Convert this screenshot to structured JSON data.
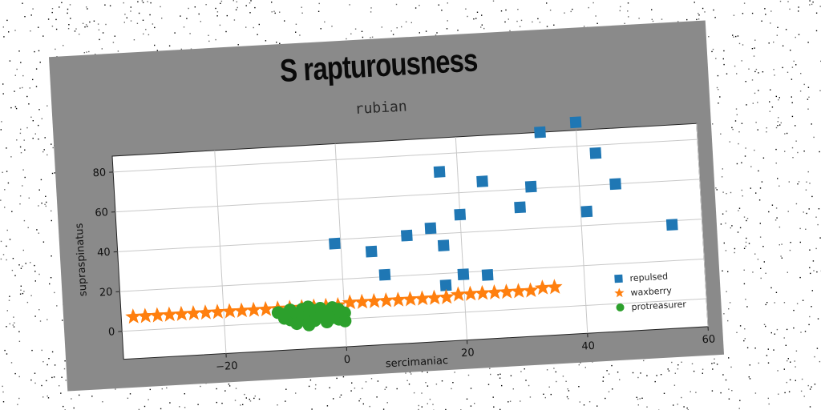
{
  "figure": {
    "title": "S rapturousness"
  },
  "chart_data": {
    "type": "scatter",
    "title": "rubian",
    "xlabel": "sercimaniac",
    "ylabel": "supraspinatus",
    "xlim": [
      -37,
      60
    ],
    "ylim": [
      -14,
      88
    ],
    "xticks": [
      -20,
      0,
      20,
      40,
      60
    ],
    "yticks": [
      0,
      20,
      40,
      60,
      80
    ],
    "grid": true,
    "legend_position": "lower-right",
    "series": [
      {
        "name": "repulsed",
        "marker": "square",
        "color": "#1f77b4",
        "points": [
          [
            -1,
            38
          ],
          [
            5,
            33
          ],
          [
            7,
            21
          ],
          [
            11,
            40
          ],
          [
            15,
            43
          ],
          [
            17,
            71
          ],
          [
            17,
            34
          ],
          [
            17,
            14
          ],
          [
            20,
            49
          ],
          [
            20,
            19
          ],
          [
            24,
            65
          ],
          [
            24,
            18
          ],
          [
            30,
            51
          ],
          [
            32,
            61
          ],
          [
            34,
            88
          ],
          [
            40,
            92
          ],
          [
            41,
            47
          ],
          [
            43,
            76
          ],
          [
            46,
            60
          ],
          [
            55,
            38
          ]
        ]
      },
      {
        "name": "waxberry",
        "marker": "star",
        "color": "#ff7f0e",
        "points": [
          [
            -35,
            7
          ],
          [
            -33,
            7
          ],
          [
            -31,
            7
          ],
          [
            -29,
            7
          ],
          [
            -27,
            7
          ],
          [
            -25,
            7
          ],
          [
            -23,
            7
          ],
          [
            -21,
            7
          ],
          [
            -19,
            7
          ],
          [
            -17,
            7
          ],
          [
            -15,
            7
          ],
          [
            -13,
            7
          ],
          [
            -11,
            7
          ],
          [
            -9,
            7
          ],
          [
            -7,
            7
          ],
          [
            -5,
            7
          ],
          [
            -3,
            7
          ],
          [
            -1,
            7
          ],
          [
            1,
            8
          ],
          [
            3,
            8
          ],
          [
            5,
            8
          ],
          [
            7,
            8
          ],
          [
            9,
            8
          ],
          [
            11,
            8
          ],
          [
            13,
            8
          ],
          [
            15,
            8
          ],
          [
            17,
            8
          ],
          [
            19,
            9
          ],
          [
            21,
            9
          ],
          [
            23,
            9
          ],
          [
            25,
            9
          ],
          [
            27,
            9
          ],
          [
            29,
            9
          ],
          [
            31,
            9
          ],
          [
            33,
            10
          ],
          [
            35,
            10
          ]
        ]
      },
      {
        "name": "protreasurer",
        "marker": "circle",
        "color": "#2ca02c",
        "points": [
          [
            -11,
            5
          ],
          [
            -10,
            2
          ],
          [
            -9,
            6
          ],
          [
            -9,
            1
          ],
          [
            -8,
            4
          ],
          [
            -8,
            -1
          ],
          [
            -7,
            6
          ],
          [
            -7,
            2
          ],
          [
            -6,
            3
          ],
          [
            -6,
            -2
          ],
          [
            -5,
            5
          ],
          [
            -5,
            0
          ],
          [
            -4,
            6
          ],
          [
            -4,
            2
          ],
          [
            -3,
            4
          ],
          [
            -3,
            -1
          ],
          [
            -2,
            6
          ],
          [
            -2,
            1
          ],
          [
            -1,
            5
          ],
          [
            -1,
            0
          ],
          [
            0,
            3
          ],
          [
            0,
            -1
          ],
          [
            -10,
            4
          ],
          [
            -6,
            7
          ]
        ]
      }
    ]
  }
}
